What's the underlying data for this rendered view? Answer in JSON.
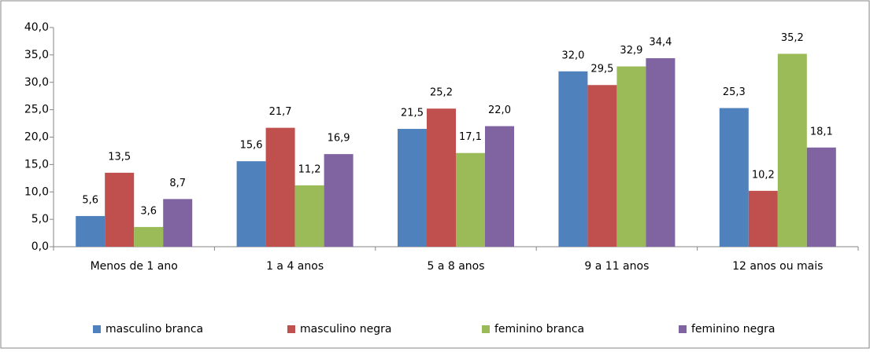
{
  "chart_data": {
    "type": "bar",
    "categories": [
      "Menos de 1 ano",
      "1 a 4 anos",
      "5 a 8 anos",
      "9 a 11 anos",
      "12 anos ou mais"
    ],
    "series": [
      {
        "name": "masculino branca",
        "color": "#4f81bd",
        "values": [
          5.6,
          15.6,
          21.5,
          32.0,
          25.3
        ],
        "value_labels": [
          "5,6",
          "15,6",
          "21,5",
          "32,0",
          "25,3"
        ]
      },
      {
        "name": "masculino negra",
        "color": "#c0504d",
        "values": [
          13.5,
          21.7,
          25.2,
          29.5,
          10.2
        ],
        "value_labels": [
          "13,5",
          "21,7",
          "25,2",
          "29,5",
          "10,2"
        ]
      },
      {
        "name": "feminino branca",
        "color": "#9bbb59",
        "values": [
          3.6,
          11.2,
          17.1,
          32.9,
          35.2
        ],
        "value_labels": [
          "3,6",
          "11,2",
          "17,1",
          "32,9",
          "35,2"
        ]
      },
      {
        "name": "feminino negra",
        "color": "#8064a2",
        "values": [
          8.7,
          16.9,
          22.0,
          34.4,
          18.1
        ],
        "value_labels": [
          "8,7",
          "16,9",
          "22,0",
          "34,4",
          "18,1"
        ]
      }
    ],
    "ylim": [
      0,
      40
    ],
    "yticks": [
      {
        "value": 0,
        "label": "0,0"
      },
      {
        "value": 5,
        "label": "5,0"
      },
      {
        "value": 10,
        "label": "10,0"
      },
      {
        "value": 15,
        "label": "15,0"
      },
      {
        "value": 20,
        "label": "20,0"
      },
      {
        "value": 25,
        "label": "25,0"
      },
      {
        "value": 30,
        "label": "30,0"
      },
      {
        "value": 35,
        "label": "35,0"
      },
      {
        "value": 40,
        "label": "40,0"
      }
    ],
    "legend": "bottom"
  }
}
